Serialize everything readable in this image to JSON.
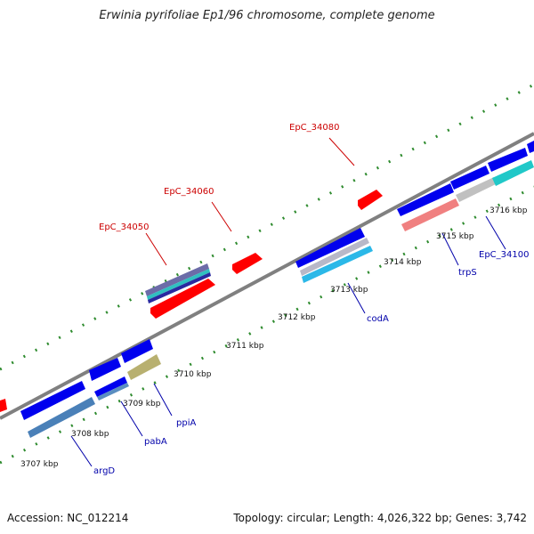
{
  "title": "Erwinia pyrifoliae Ep1/96 chromosome, complete genome",
  "footer": {
    "accession": "Accession: NC_012214",
    "stats": "Topology: circular; Length: 4,026,322 bp; Genes: 3,742"
  },
  "ticks": [
    "3707 kbp",
    "3708 kbp",
    "3709 kbp",
    "3710 kbp",
    "3711 kbp",
    "3712 kbp",
    "3713 kbp",
    "3714 kbp",
    "3715 kbp",
    "3716 kbp"
  ],
  "gene_labels": [
    "EpC_34080",
    "EpC_34060",
    "EpC_34050",
    "trpS",
    "EpC_34100",
    "codA",
    "ppiA",
    "pabA",
    "argD"
  ],
  "colors": {
    "backbone": "#808080",
    "forward_gene": "#0000ee",
    "rna": "#ff0000",
    "scale_dots": "#2e8b2e",
    "label_red": "#cc0000",
    "label_blue": "#0000aa"
  }
}
